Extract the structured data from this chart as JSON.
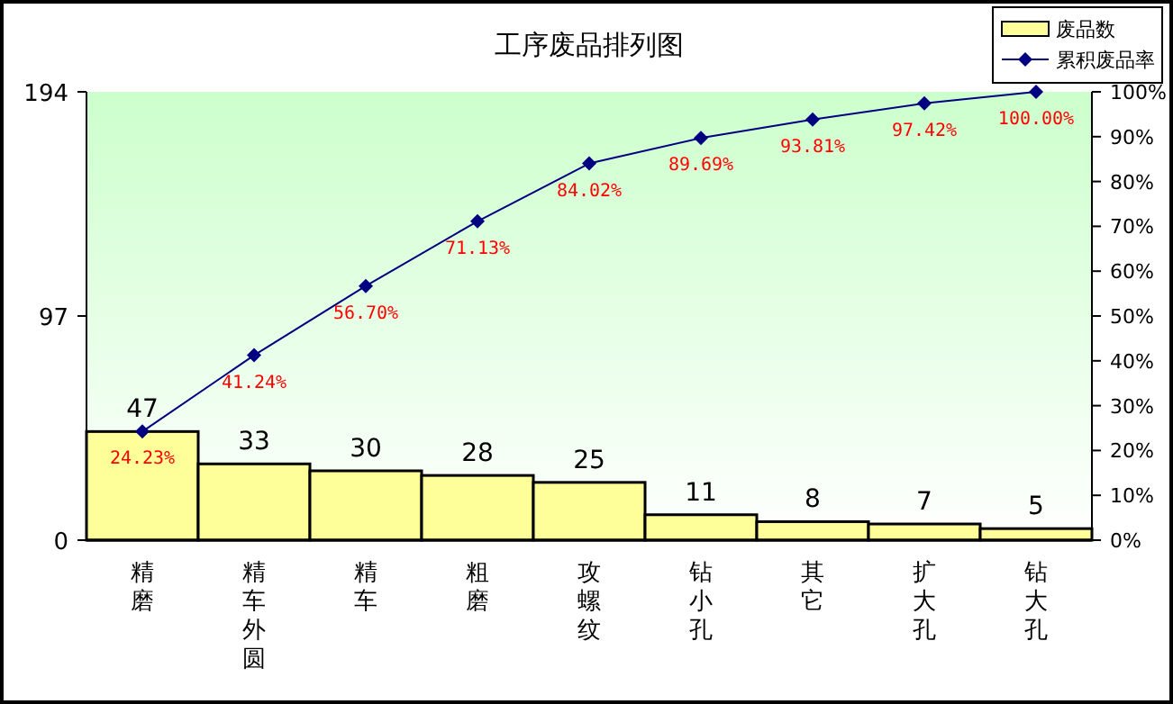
{
  "chart_data": {
    "type": "bar",
    "title": "工序废品排列图",
    "categories": [
      "精磨",
      "精车外圆",
      "精车",
      "粗磨",
      "攻螺纹",
      "钻小孔",
      "其它",
      "扩大孔",
      "钻大孔"
    ],
    "series": [
      {
        "name": "废品数",
        "color": "#ffff99",
        "values": [
          47,
          33,
          30,
          28,
          25,
          11,
          8,
          7,
          5
        ],
        "value_labels": [
          "47",
          "33",
          "30",
          "28",
          "25",
          "11",
          "8",
          "7",
          "5"
        ]
      },
      {
        "name": "累积废品率",
        "type": "line",
        "axis": "y2",
        "color": "#000080",
        "marker": "diamond",
        "line_style": "solid",
        "values": [
          24.23,
          41.24,
          56.7,
          71.13,
          84.02,
          89.69,
          93.81,
          97.42,
          100.0
        ],
        "value_labels": [
          "24.23%",
          "41.24%",
          "56.70%",
          "71.13%",
          "84.02%",
          "89.69%",
          "93.81%",
          "97.42%",
          "100.00%"
        ]
      }
    ],
    "ylim": [
      0,
      194
    ],
    "yticks": [
      0,
      97,
      194
    ],
    "y2lim": [
      0,
      100
    ],
    "y2ticks": [
      {
        "value": 0,
        "label": "0%"
      },
      {
        "value": 10,
        "label": "10%"
      },
      {
        "value": 20,
        "label": "20%"
      },
      {
        "value": 30,
        "label": "30%"
      },
      {
        "value": 40,
        "label": "40%"
      },
      {
        "value": 50,
        "label": "50%"
      },
      {
        "value": 60,
        "label": "60%"
      },
      {
        "value": 70,
        "label": "70%"
      },
      {
        "value": 80,
        "label": "80%"
      },
      {
        "value": 90,
        "label": "90%"
      },
      {
        "value": 100,
        "label": "100%"
      }
    ],
    "legend": "top right"
  }
}
